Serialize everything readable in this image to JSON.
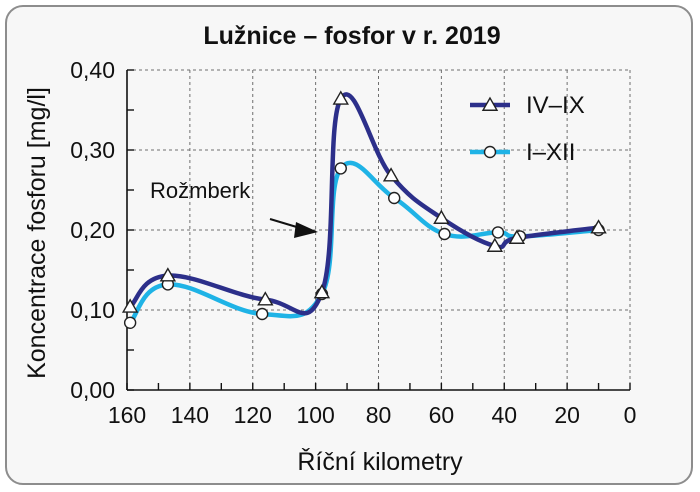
{
  "chart_data": {
    "type": "line",
    "title": "Lužnice – fosfor v r. 2019",
    "xlabel": "Říční kilometry",
    "ylabel": "Koncentrace fosforu [mg/l]",
    "xlim": [
      160,
      0
    ],
    "ylim": [
      0,
      0.4
    ],
    "x_ticks": [
      160,
      140,
      120,
      100,
      80,
      60,
      40,
      20,
      0
    ],
    "x_tick_labels": [
      "160",
      "140",
      "120",
      "100",
      "80",
      "60",
      "40",
      "20",
      "0"
    ],
    "y_ticks": [
      0,
      0.1,
      0.2,
      0.3,
      0.4
    ],
    "y_tick_labels": [
      "0,00",
      "0,10",
      "0,20",
      "0,30",
      "0,40"
    ],
    "grid": true,
    "legend_position": "top-right",
    "series": [
      {
        "name": "IV–IX",
        "color": "#2c2f8a",
        "marker": "triangle",
        "points": [
          [
            159,
            0.104
          ],
          [
            147,
            0.143
          ],
          [
            116,
            0.113
          ],
          [
            98,
            0.122
          ],
          [
            92,
            0.364
          ],
          [
            76,
            0.268
          ],
          [
            60,
            0.215
          ],
          [
            43,
            0.18
          ],
          [
            36,
            0.19
          ],
          [
            10,
            0.203
          ]
        ]
      },
      {
        "name": "I–XII",
        "color": "#1fb3e6",
        "marker": "circle",
        "points": [
          [
            159,
            0.084
          ],
          [
            147,
            0.132
          ],
          [
            117,
            0.095
          ],
          [
            98,
            0.12
          ],
          [
            92,
            0.277
          ],
          [
            75,
            0.24
          ],
          [
            59,
            0.195
          ],
          [
            42,
            0.197
          ],
          [
            35,
            0.192
          ],
          [
            10,
            0.2
          ]
        ]
      }
    ],
    "annotations": [
      {
        "text": "Rožmberk",
        "x": 99,
        "y": 0.2
      }
    ]
  }
}
